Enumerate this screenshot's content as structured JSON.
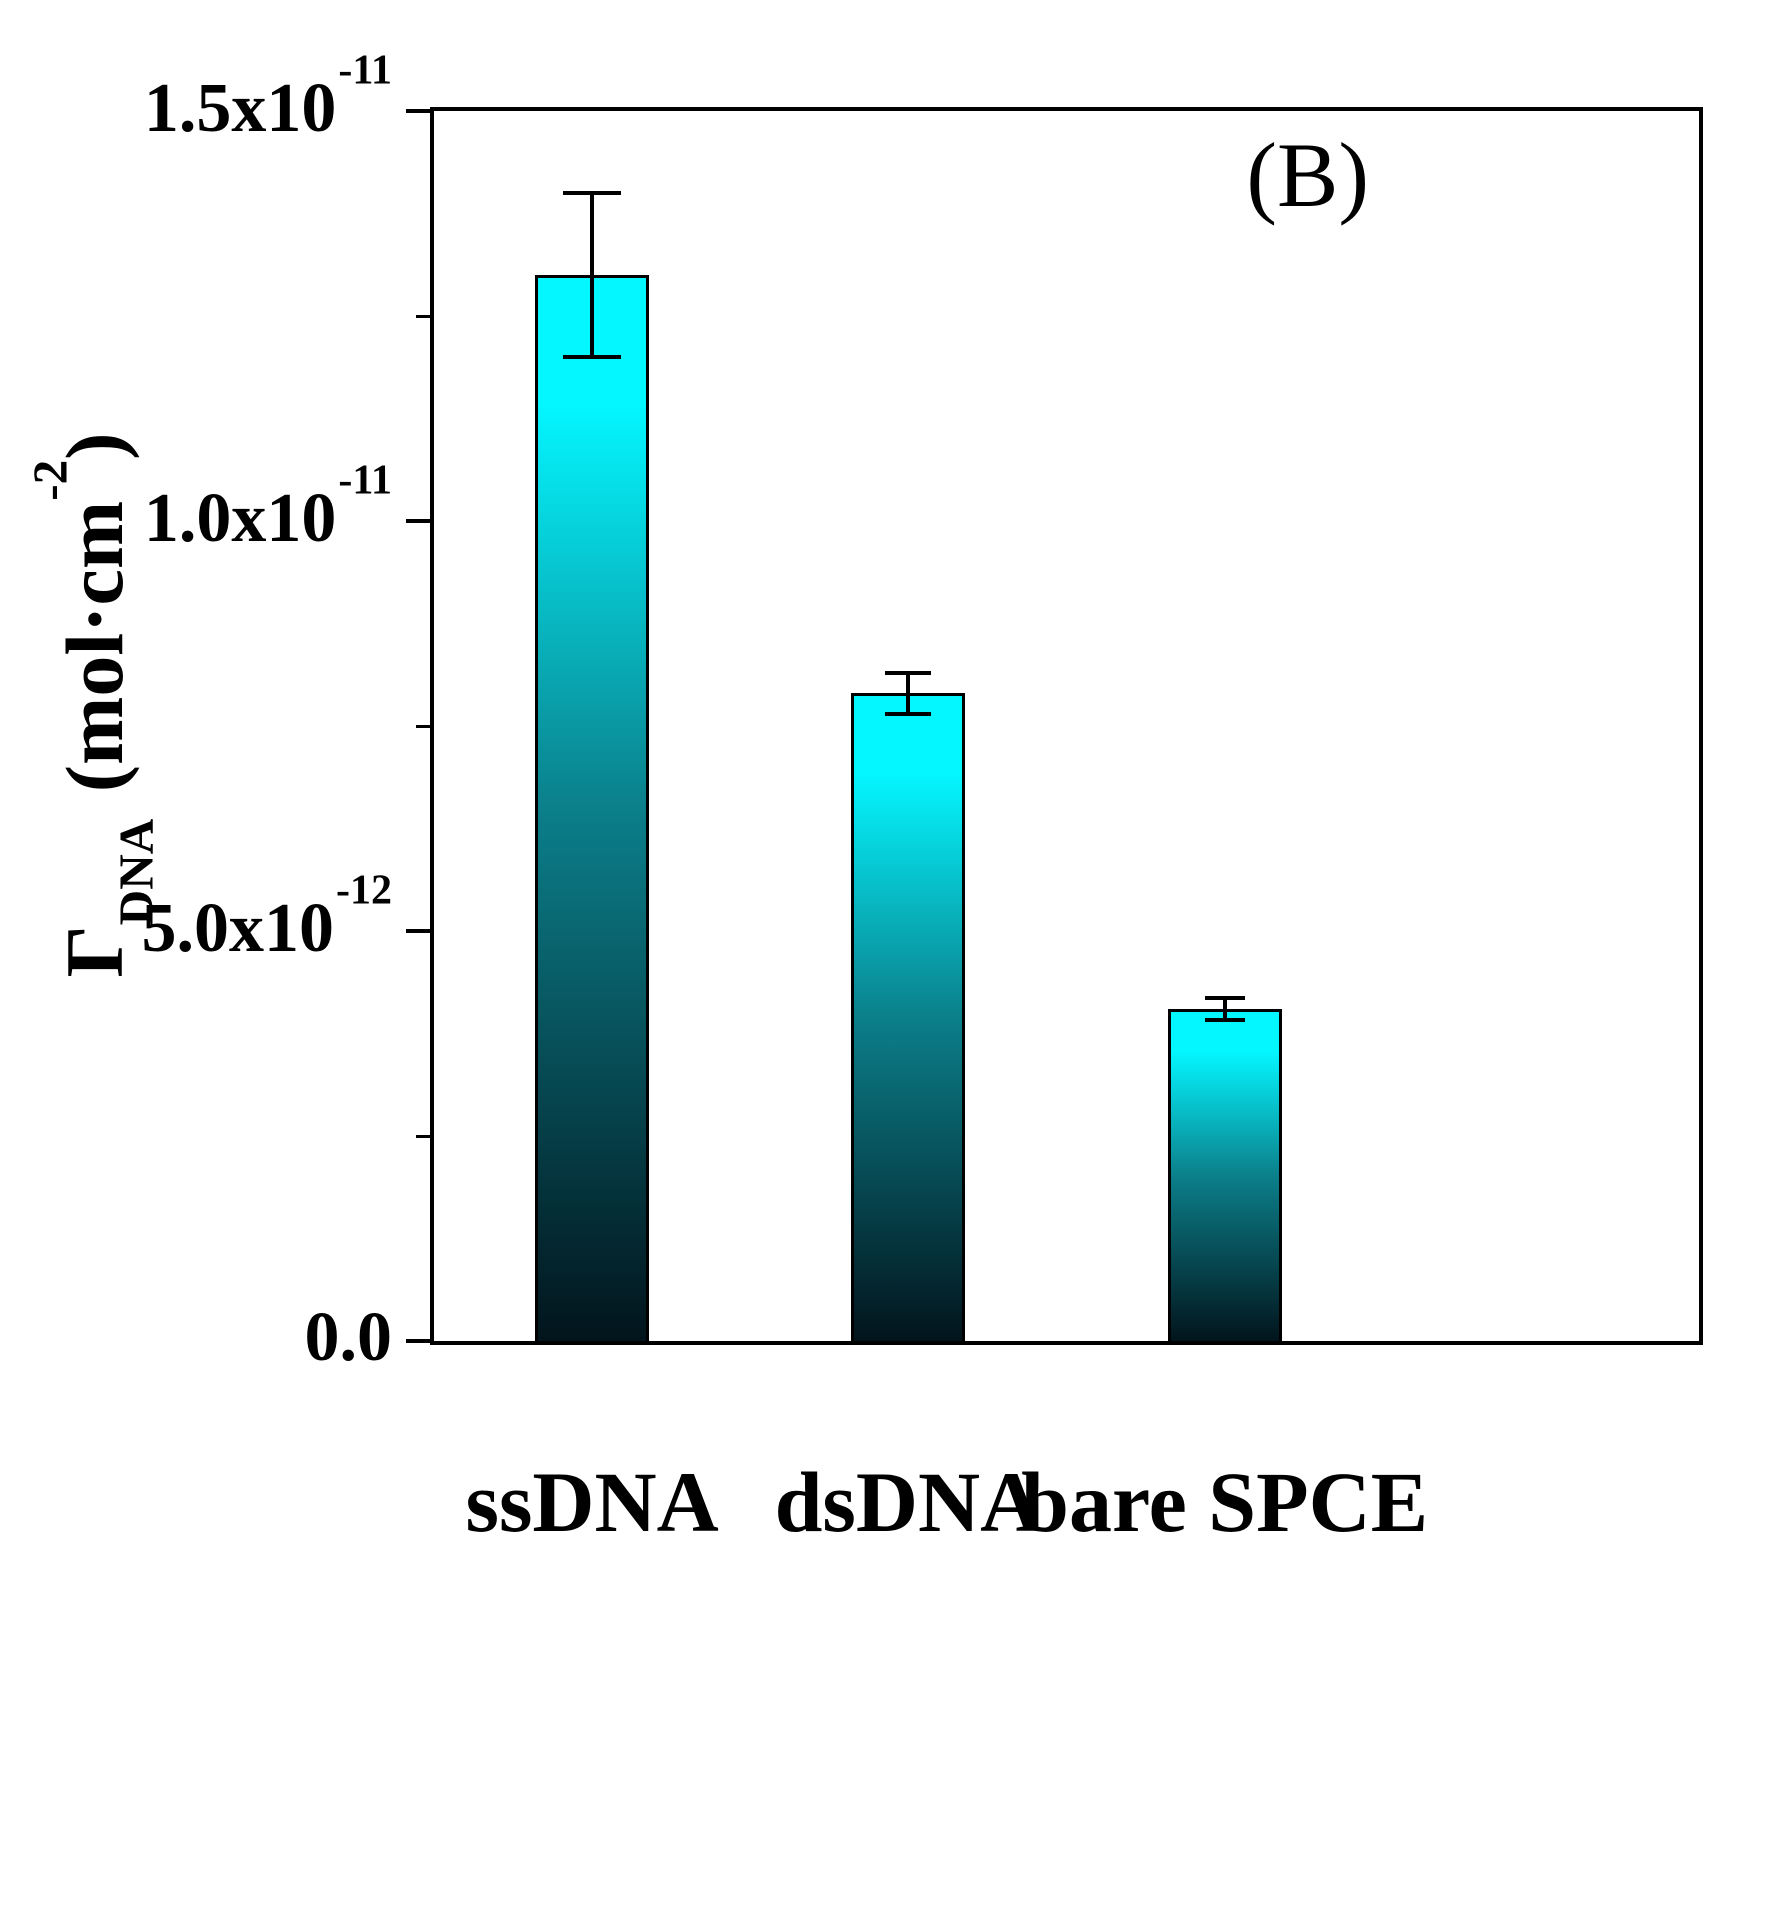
{
  "figure": {
    "background": "#ffffff"
  },
  "chart_data": {
    "type": "bar",
    "title": "",
    "panel_label": "(B)",
    "categories": [
      "ssDNA",
      "dsDNA",
      "bare SPCE"
    ],
    "values": [
      1.3e-11,
      7.9e-12,
      4.05e-12
    ],
    "errors": [
      1e-12,
      2.5e-13,
      1.3e-13
    ],
    "xlabel": "",
    "ylabel": "Γ_DNA (mol·cm^-2)",
    "ylabel_parts": {
      "symbol": "Γ",
      "subscript": "DNA",
      "unit_prefix": " (mol·cm",
      "unit_exponent": "-2",
      "unit_suffix": ")"
    },
    "ylim": [
      0,
      1.5e-11
    ],
    "yticks": [
      {
        "value": 0,
        "base": "0.0",
        "exponent": ""
      },
      {
        "value": 5e-12,
        "base": "5.0x10",
        "exponent": "-12"
      },
      {
        "value": 1e-11,
        "base": "1.0x10",
        "exponent": "-11"
      },
      {
        "value": 1.5e-11,
        "base": "1.5x10",
        "exponent": "-11"
      }
    ],
    "minor_yticks": [
      2.5e-12,
      7.5e-12,
      1.25e-11
    ],
    "grid": false,
    "legend": null,
    "colors": {
      "bar_top": "#04f6ff",
      "bar_mid": "#0b7f8a",
      "bar_bottom": "#02141c",
      "bar_border": "#000000",
      "axis": "#000000",
      "error_bar": "#000000"
    }
  }
}
